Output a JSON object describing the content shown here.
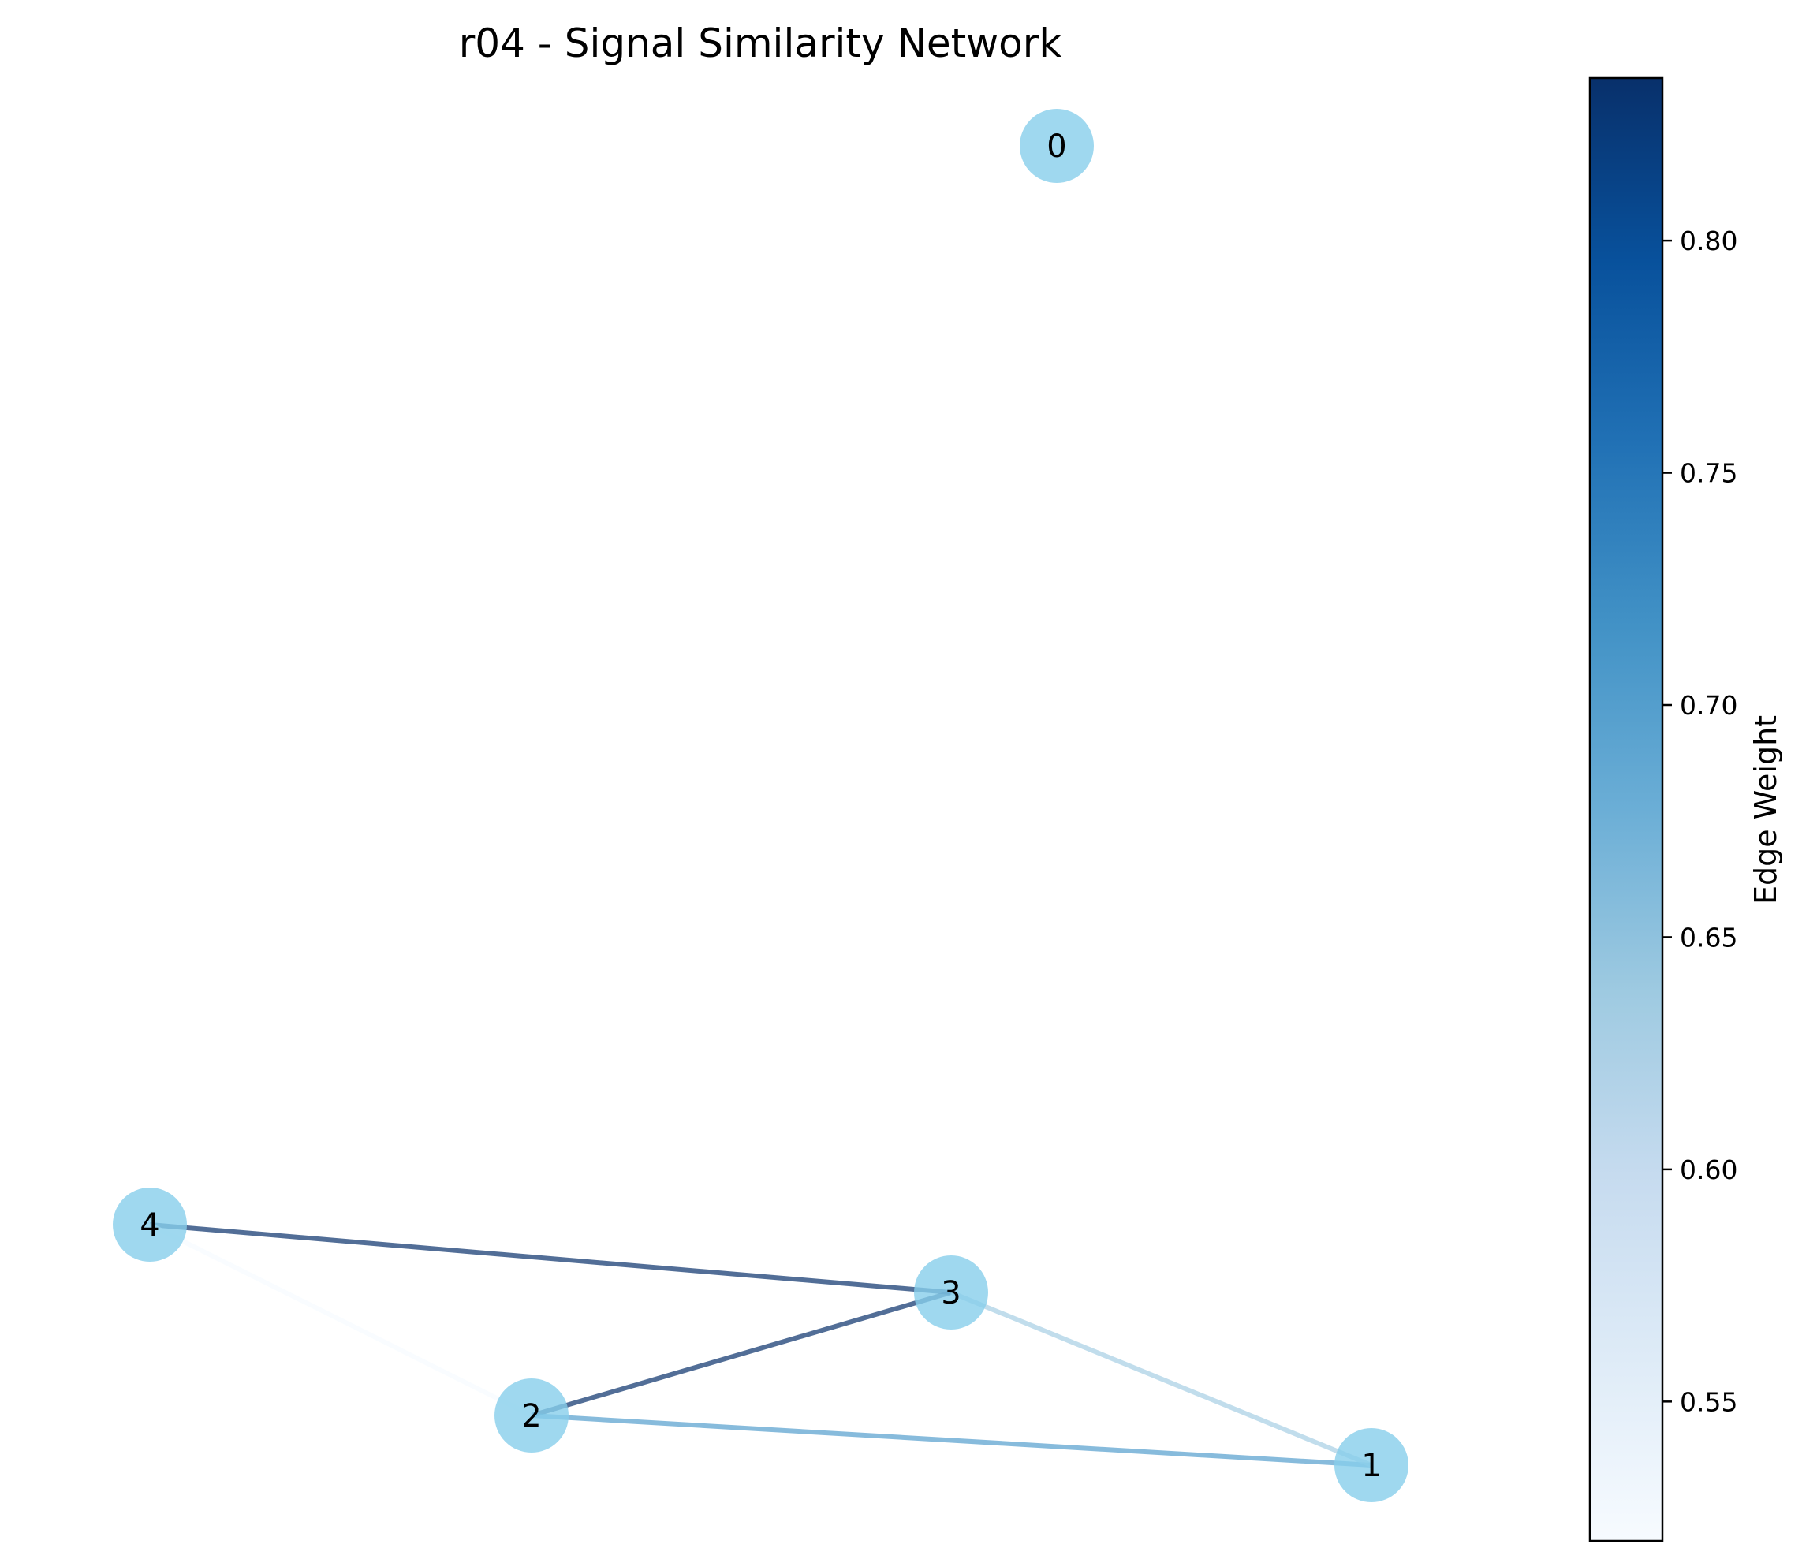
{
  "chart_data": {
    "type": "network",
    "title": "r04 - Signal Similarity Network",
    "nodes": [
      {
        "id": "0"
      },
      {
        "id": "1"
      },
      {
        "id": "2"
      },
      {
        "id": "3"
      },
      {
        "id": "4"
      }
    ],
    "edges": [
      {
        "source": "4",
        "target": "3",
        "weight": 0.835
      },
      {
        "source": "2",
        "target": "3",
        "weight": 0.835
      },
      {
        "source": "2",
        "target": "1",
        "weight": 0.7
      },
      {
        "source": "3",
        "target": "1",
        "weight": 0.63
      },
      {
        "source": "4",
        "target": "2",
        "weight": 0.52
      }
    ],
    "colorbar": {
      "label": "Edge Weight",
      "colormap": "Blues",
      "range": [
        0.52,
        0.835
      ],
      "ticks": [
        "0.55",
        "0.60",
        "0.65",
        "0.70",
        "0.75",
        "0.80"
      ]
    },
    "node_color": "#87ceeb",
    "edge_alpha": 0.7
  }
}
